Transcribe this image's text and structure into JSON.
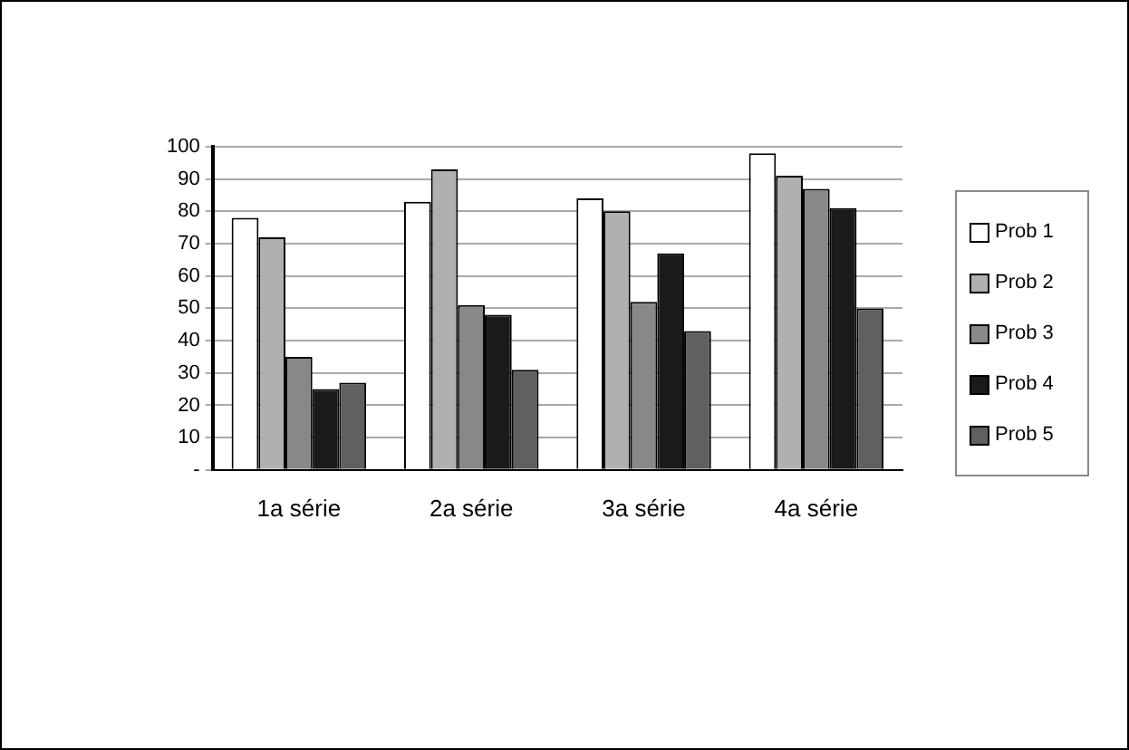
{
  "chart_data": {
    "type": "bar",
    "categories": [
      "1a série",
      "2a série",
      "3a série",
      "4a série"
    ],
    "series": [
      {
        "name": "Prob 1",
        "color": "#ffffff",
        "values": [
          78,
          83,
          84,
          98
        ]
      },
      {
        "name": "Prob 2",
        "color": "#b0b0b0",
        "values": [
          72,
          93,
          80,
          91
        ]
      },
      {
        "name": "Prob 3",
        "color": "#888888",
        "values": [
          35,
          51,
          52,
          87
        ]
      },
      {
        "name": "Prob 4",
        "color": "#1a1a1a",
        "values": [
          25,
          48,
          67,
          81
        ]
      },
      {
        "name": "Prob 5",
        "color": "#606060",
        "values": [
          27,
          31,
          43,
          50
        ]
      }
    ],
    "ylim": [
      0,
      100
    ],
    "yticks": [
      {
        "value": 0,
        "label": "-"
      },
      10,
      20,
      30,
      40,
      50,
      60,
      70,
      80,
      90,
      100
    ],
    "grid": "y",
    "legend": "right"
  }
}
